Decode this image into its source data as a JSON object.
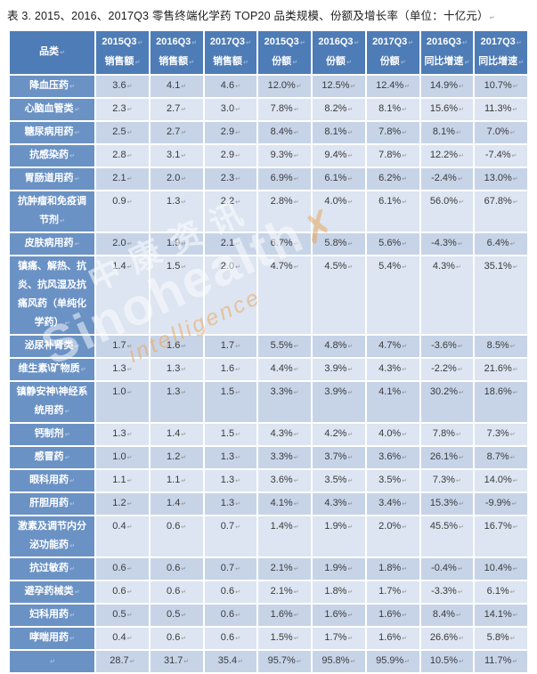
{
  "title": "表 3. 2015、2016、2017Q3 零售终端化学药 TOP20 品类规模、份额及增长率（单位：十亿元）",
  "marks": {
    "paragraph": "↵"
  },
  "watermark": {
    "cjk": "中康资讯",
    "name": "Sinohealth",
    "x_glyph": "✗",
    "sub": "intelligence"
  },
  "colors": {
    "header_bg": "#4e7cb6",
    "label_bg": "#6b92c4",
    "band_dark": "#c7d4e8",
    "band_light": "#dce5f1",
    "header_text": "#ffffff",
    "cell_text": "#3a3a3a"
  },
  "table": {
    "corner_header": "品类",
    "columns": [
      {
        "period": "2015Q3",
        "metric": "销售额"
      },
      {
        "period": "2016Q3",
        "metric": "销售额"
      },
      {
        "period": "2017Q3",
        "metric": "销售额"
      },
      {
        "period": "2015Q3",
        "metric": "份额"
      },
      {
        "period": "2016Q3",
        "metric": "份额"
      },
      {
        "period": "2017Q3",
        "metric": "份额"
      },
      {
        "period": "2016Q3",
        "metric": "同比增速"
      },
      {
        "period": "2017Q3",
        "metric": "同比增速"
      }
    ],
    "rows": [
      {
        "label": "降血压药",
        "values": [
          "3.6",
          "4.1",
          "4.6",
          "12.0%",
          "12.5%",
          "12.4%",
          "14.9%",
          "10.7%"
        ]
      },
      {
        "label": "心脑血管类",
        "values": [
          "2.3",
          "2.7",
          "3.0",
          "7.8%",
          "8.2%",
          "8.1%",
          "15.6%",
          "11.3%"
        ]
      },
      {
        "label": "糖尿病用药",
        "values": [
          "2.5",
          "2.7",
          "2.9",
          "8.4%",
          "8.1%",
          "7.8%",
          "8.1%",
          "7.0%"
        ]
      },
      {
        "label": "抗感染药",
        "values": [
          "2.8",
          "3.1",
          "2.9",
          "9.3%",
          "9.4%",
          "7.8%",
          "12.2%",
          "-7.4%"
        ]
      },
      {
        "label": "胃肠道用药",
        "values": [
          "2.1",
          "2.0",
          "2.3",
          "6.9%",
          "6.1%",
          "6.2%",
          "-2.4%",
          "13.0%"
        ]
      },
      {
        "label": "抗肿瘤和免疫调节剂",
        "values": [
          "0.9",
          "1.3",
          "2.2",
          "2.8%",
          "4.0%",
          "6.1%",
          "56.0%",
          "67.8%"
        ]
      },
      {
        "label": "皮肤病用药",
        "values": [
          "2.0",
          "1.9",
          "2.1",
          "6.7%",
          "5.8%",
          "5.6%",
          "-4.3%",
          "6.4%"
        ]
      },
      {
        "label": "镇痛、解热、抗炎、抗风湿及抗痛风药（单纯化学药）",
        "values": [
          "1.4",
          "1.5",
          "2.0",
          "4.7%",
          "4.5%",
          "5.4%",
          "4.3%",
          "35.1%"
        ]
      },
      {
        "label": "泌尿补肾类",
        "values": [
          "1.7",
          "1.6",
          "1.7",
          "5.5%",
          "4.8%",
          "4.7%",
          "-3.6%",
          "8.5%"
        ]
      },
      {
        "label": "维生素\\矿物质",
        "values": [
          "1.3",
          "1.3",
          "1.6",
          "4.4%",
          "3.9%",
          "4.3%",
          "-2.2%",
          "21.6%"
        ]
      },
      {
        "label": "镇静安神\\神经系统用药",
        "values": [
          "1.0",
          "1.3",
          "1.5",
          "3.3%",
          "3.9%",
          "4.1%",
          "30.2%",
          "18.6%"
        ]
      },
      {
        "label": "钙制剂",
        "values": [
          "1.3",
          "1.4",
          "1.5",
          "4.3%",
          "4.2%",
          "4.0%",
          "7.8%",
          "7.3%"
        ]
      },
      {
        "label": "感冒药",
        "values": [
          "1.0",
          "1.2",
          "1.3",
          "3.3%",
          "3.7%",
          "3.6%",
          "26.1%",
          "8.7%"
        ]
      },
      {
        "label": "眼科用药",
        "values": [
          "1.1",
          "1.1",
          "1.3",
          "3.6%",
          "3.5%",
          "3.5%",
          "7.3%",
          "14.0%"
        ]
      },
      {
        "label": "肝胆用药",
        "values": [
          "1.2",
          "1.4",
          "1.3",
          "4.1%",
          "4.3%",
          "3.4%",
          "15.3%",
          "-9.9%"
        ]
      },
      {
        "label": "激素及调节内分泌功能药",
        "values": [
          "0.4",
          "0.6",
          "0.7",
          "1.4%",
          "1.9%",
          "2.0%",
          "45.5%",
          "16.7%"
        ]
      },
      {
        "label": "抗过敏药",
        "values": [
          "0.6",
          "0.6",
          "0.7",
          "2.1%",
          "1.9%",
          "1.8%",
          "-0.4%",
          "10.4%"
        ]
      },
      {
        "label": "避孕药械类",
        "values": [
          "0.6",
          "0.6",
          "0.6",
          "2.1%",
          "1.8%",
          "1.7%",
          "-3.3%",
          "6.1%"
        ]
      },
      {
        "label": "妇科用药",
        "values": [
          "0.5",
          "0.5",
          "0.6",
          "1.6%",
          "1.6%",
          "1.6%",
          "8.4%",
          "14.1%"
        ]
      },
      {
        "label": "哮喘用药",
        "values": [
          "0.4",
          "0.6",
          "0.6",
          "1.5%",
          "1.7%",
          "1.6%",
          "26.6%",
          "5.8%"
        ]
      },
      {
        "label": "",
        "values": [
          "28.7",
          "31.7",
          "35.4",
          "95.7%",
          "95.8%",
          "95.9%",
          "10.5%",
          "11.7%"
        ]
      }
    ]
  }
}
